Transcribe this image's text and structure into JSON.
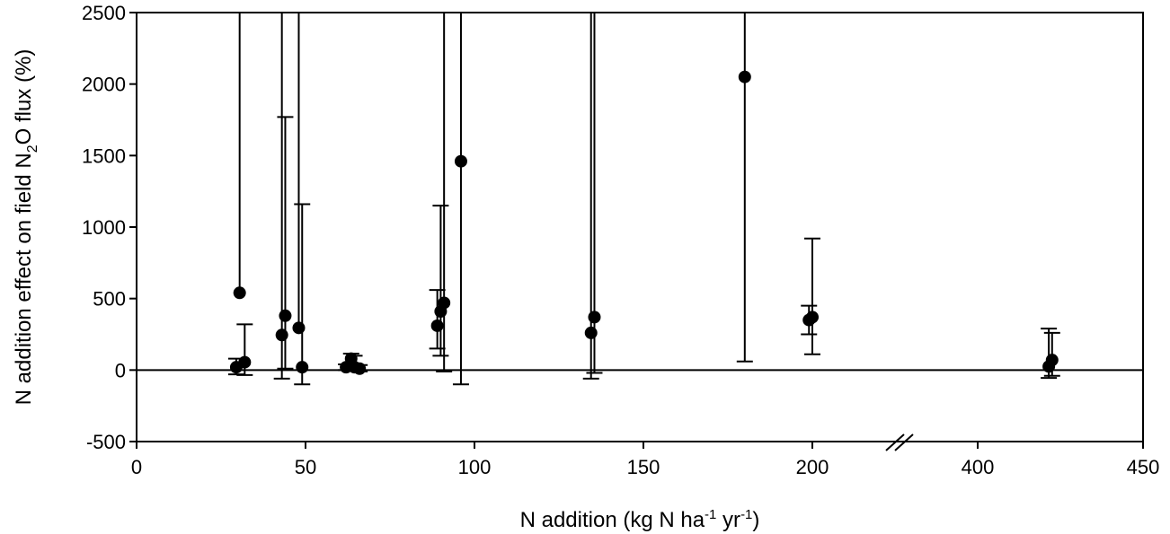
{
  "chart_data": {
    "type": "scatter",
    "title": "",
    "xlabel": {
      "pre": "N addition (kg N ha",
      "sup1": "-1",
      "mid": " yr",
      "sup2": "-1",
      "post": ")"
    },
    "ylabel": {
      "pre": "N addition effect on field N",
      "sub": "2",
      "post": "O flux (%)"
    },
    "ylim": [
      -500,
      2500
    ],
    "yticks": [
      -500,
      0,
      500,
      1000,
      1500,
      2000,
      2500
    ],
    "xaxis_segments": [
      {
        "range": [
          0,
          200
        ],
        "ticks": [
          0,
          50,
          100,
          150,
          200
        ]
      },
      {
        "range": [
          350,
          450
        ],
        "ticks": [
          400,
          450
        ]
      }
    ],
    "x_break": "between 200 and 400",
    "reference_line_y": 0,
    "points": [
      {
        "x": 29.5,
        "y": 20,
        "lo": -30,
        "hi": 80
      },
      {
        "x": 30.5,
        "y": 540,
        "lo": null,
        "hi": 2500
      },
      {
        "x": 32,
        "y": 55,
        "lo": -35,
        "hi": 320
      },
      {
        "x": 43,
        "y": 245,
        "lo": -60,
        "hi": 2500
      },
      {
        "x": 44,
        "y": 380,
        "lo": 10,
        "hi": 1770
      },
      {
        "x": 48,
        "y": 295,
        "lo": null,
        "hi": 2500
      },
      {
        "x": 49,
        "y": 20,
        "lo": -100,
        "hi": 1160
      },
      {
        "x": 62,
        "y": 20,
        "lo": 0,
        "hi": 40
      },
      {
        "x": 63.5,
        "y": 80,
        "lo": 30,
        "hi": 115
      },
      {
        "x": 64.5,
        "y": 20,
        "lo": -5,
        "hi": 100
      },
      {
        "x": 66,
        "y": 10,
        "lo": -10,
        "hi": 35
      },
      {
        "x": 89,
        "y": 310,
        "lo": 150,
        "hi": 560
      },
      {
        "x": 90,
        "y": 410,
        "lo": 100,
        "hi": 1150
      },
      {
        "x": 91,
        "y": 470,
        "lo": -10,
        "hi": 2500
      },
      {
        "x": 96,
        "y": 1460,
        "lo": -100,
        "hi": 2500
      },
      {
        "x": 134.5,
        "y": 260,
        "lo": -60,
        "hi": 2500
      },
      {
        "x": 135.5,
        "y": 370,
        "lo": -20,
        "hi": 2500
      },
      {
        "x": 180,
        "y": 2050,
        "lo": 60,
        "hi": 2500
      },
      {
        "x": 199,
        "y": 350,
        "lo": 250,
        "hi": 450
      },
      {
        "x": 200,
        "y": 370,
        "lo": 110,
        "hi": 920
      },
      {
        "x": 421.5,
        "y": 25,
        "lo": -55,
        "hi": 290
      },
      {
        "x": 422.5,
        "y": 70,
        "lo": -40,
        "hi": 260
      }
    ]
  }
}
